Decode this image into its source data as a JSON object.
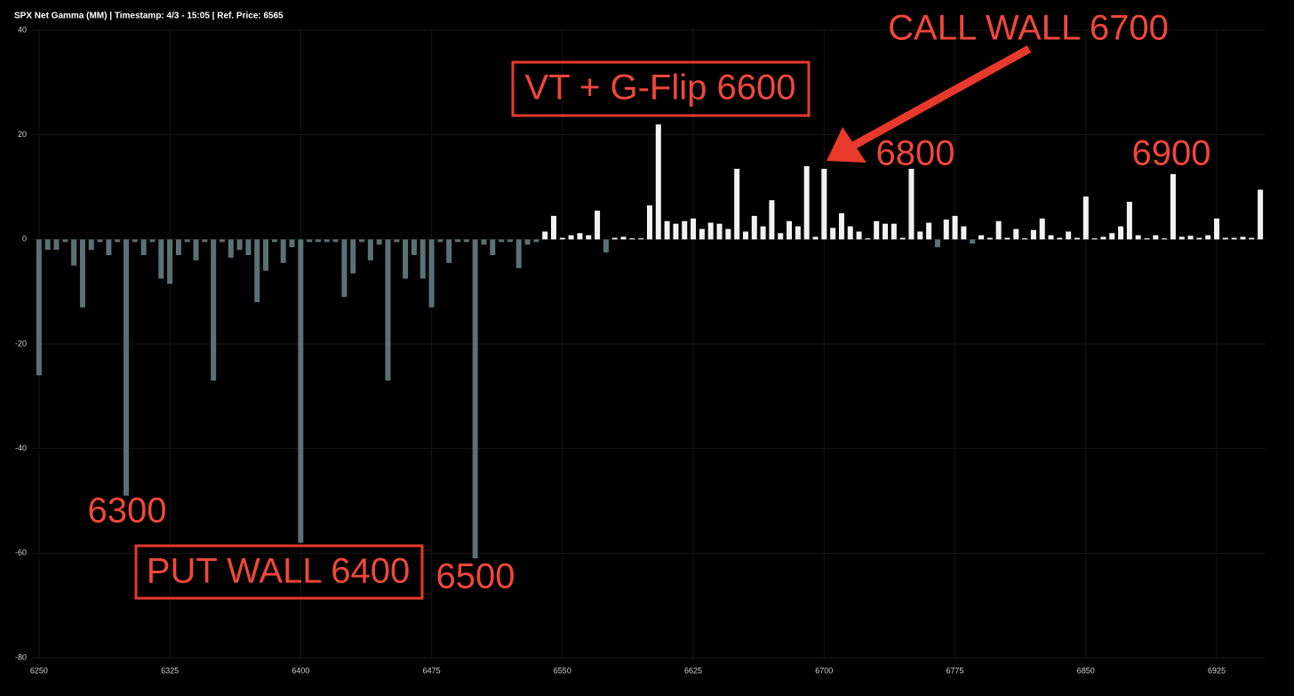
{
  "chart_data": {
    "type": "bar",
    "title": "SPX Net Gamma (MM) | Timestamp: 4/3 - 15:05  | Ref. Price: 6565",
    "x": [
      6250,
      6255,
      6260,
      6265,
      6270,
      6275,
      6280,
      6285,
      6290,
      6295,
      6300,
      6305,
      6310,
      6315,
      6320,
      6325,
      6330,
      6335,
      6340,
      6345,
      6350,
      6355,
      6360,
      6365,
      6370,
      6375,
      6380,
      6385,
      6390,
      6395,
      6400,
      6405,
      6410,
      6415,
      6420,
      6425,
      6430,
      6435,
      6440,
      6445,
      6450,
      6455,
      6460,
      6465,
      6470,
      6475,
      6480,
      6485,
      6490,
      6495,
      6500,
      6505,
      6510,
      6515,
      6520,
      6525,
      6530,
      6535,
      6540,
      6545,
      6550,
      6555,
      6560,
      6565,
      6570,
      6575,
      6580,
      6585,
      6590,
      6595,
      6600,
      6605,
      6610,
      6615,
      6620,
      6625,
      6630,
      6635,
      6640,
      6645,
      6650,
      6655,
      6660,
      6665,
      6670,
      6675,
      6680,
      6685,
      6690,
      6695,
      6700,
      6705,
      6710,
      6715,
      6720,
      6725,
      6730,
      6735,
      6740,
      6745,
      6750,
      6755,
      6760,
      6765,
      6770,
      6775,
      6780,
      6785,
      6790,
      6795,
      6800,
      6805,
      6810,
      6815,
      6820,
      6825,
      6830,
      6835,
      6840,
      6845,
      6850,
      6855,
      6860,
      6865,
      6870,
      6875,
      6880,
      6885,
      6890,
      6895,
      6900,
      6905,
      6910,
      6915,
      6920,
      6925,
      6930,
      6935,
      6940,
      6945,
      6950
    ],
    "values": [
      -26,
      -2,
      -2,
      -0.5,
      -5,
      -13,
      -2,
      -0.5,
      -3,
      -0.5,
      -49,
      -0.5,
      -3,
      -0.5,
      -7.5,
      -8.5,
      -3,
      -0.5,
      -4,
      -0.5,
      -27,
      -0.5,
      -3.5,
      -2,
      -3,
      -12,
      -6,
      -0.5,
      -4.5,
      -1.5,
      -58,
      -0.5,
      -0.5,
      -0.5,
      -0.5,
      -11,
      -6.5,
      -0.5,
      -4,
      -1,
      -27,
      -0.5,
      -7.5,
      -3,
      -7.5,
      -13,
      -0.5,
      -4.5,
      -0.5,
      -0.5,
      -61,
      -1,
      -3,
      -0.5,
      -0.5,
      -5.5,
      -1,
      -0.5,
      1.5,
      4.5,
      0.3,
      0.8,
      1.2,
      0.8,
      5.5,
      -2.5,
      0.3,
      0.5,
      0.2,
      0.2,
      6.5,
      22,
      3.5,
      3,
      3.5,
      4,
      2,
      3.2,
      3,
      2,
      13.5,
      1.5,
      4.5,
      2.5,
      7.5,
      1.2,
      3.5,
      2.5,
      14,
      0.5,
      13.5,
      2.2,
      5,
      2.5,
      1.5,
      0.2,
      3.5,
      3,
      3,
      0.3,
      13.5,
      1.5,
      3.2,
      -1.5,
      3.8,
      4.5,
      2.5,
      -0.8,
      0.8,
      0.3,
      3.5,
      0.3,
      2,
      0.2,
      1.8,
      4,
      0.8,
      0.3,
      1.5,
      0.3,
      8.2,
      0.2,
      0.5,
      1.2,
      2.5,
      7.2,
      0.8,
      0.2,
      0.8,
      0.2,
      12.5,
      0.5,
      0.7,
      0.3,
      0.8,
      4,
      0.3,
      0.3,
      0.5,
      0.3,
      9.5
    ],
    "positive_color": "#f2f2f2",
    "negative_color": "#5b7176",
    "xlim": [
      6246,
      6953
    ],
    "xticks": [
      6250,
      6325,
      6400,
      6475,
      6550,
      6625,
      6700,
      6775,
      6850,
      6925
    ],
    "ylim": [
      -80,
      40
    ],
    "yticks": [
      -80,
      -60,
      -40,
      -20,
      0,
      20,
      40
    ],
    "grid": true,
    "annotations": [
      {
        "text": "CALL WALL 6700"
      },
      {
        "text": "VT + G-Flip 6600"
      },
      {
        "text": "6800"
      },
      {
        "text": "6900"
      },
      {
        "text": "6300"
      },
      {
        "text": "PUT WALL 6400"
      },
      {
        "text": "6500"
      }
    ]
  }
}
